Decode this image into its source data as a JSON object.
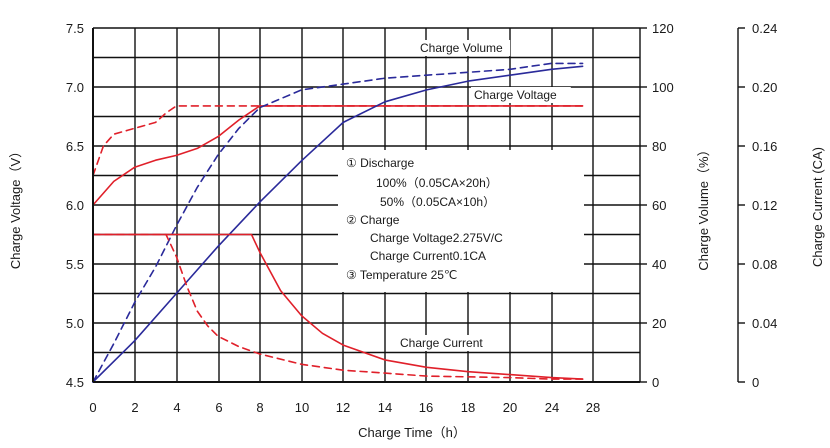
{
  "chart_data": {
    "type": "line",
    "xlabel": "Charge Time（h）",
    "ylabel_left": "Charge Voltage（V）",
    "ylabel_right1": "Charge Volume（%）",
    "ylabel_right2": "Charge Current (CA)",
    "xlim": [
      0,
      28
    ],
    "ylim_left": [
      4.5,
      7.5
    ],
    "ylim_right1": [
      0,
      120
    ],
    "ylim_right2": [
      0,
      0.24
    ],
    "grid": true,
    "x_ticks": [
      "0",
      "2",
      "4",
      "6",
      "8",
      "10",
      "12",
      "14",
      "16",
      "18",
      "20",
      "24",
      "28"
    ],
    "y_ticks_left": [
      "7.5",
      "7.0",
      "6.5",
      "6.0",
      "5.5",
      "5.0",
      "4.5"
    ],
    "y_ticks_right1": [
      "120",
      "100",
      "80",
      "60",
      "40",
      "20",
      "0"
    ],
    "y_ticks_right2": [
      "0.24",
      "0.20",
      "0.16",
      "0.12",
      "0.08",
      "0.04",
      "0"
    ],
    "curve_labels": [
      "Charge Volume",
      "Charge Voltage",
      "Charge Current"
    ],
    "legend_lines": [
      "① Discharge",
      "100%（0.05CA×20h）",
      "50%（0.05CA×10h）",
      "② Charge",
      "Charge Voltage2.275V/C",
      "Charge Current0.1CA",
      "③ Temperature 25℃"
    ],
    "colors": {
      "voltage": "#e0202a",
      "volume": "#2a2a9a",
      "current": "#e0202a",
      "grid": "#111111"
    },
    "series": [
      {
        "kind": "voltage",
        "style": "solid",
        "axis": "left",
        "x": [
          0,
          1,
          2,
          3,
          4,
          5,
          6,
          7,
          8,
          10,
          12,
          16,
          20,
          24,
          27
        ],
        "y": [
          6.0,
          6.2,
          6.32,
          6.38,
          6.42,
          6.48,
          6.58,
          6.72,
          6.84,
          6.84,
          6.84,
          6.84,
          6.84,
          6.84,
          6.84
        ]
      },
      {
        "kind": "voltage",
        "style": "dashed",
        "axis": "left",
        "x": [
          0,
          0.5,
          1,
          2,
          3,
          3.5,
          4,
          6,
          10,
          20,
          27
        ],
        "y": [
          6.25,
          6.5,
          6.6,
          6.65,
          6.7,
          6.78,
          6.84,
          6.84,
          6.84,
          6.84,
          6.84
        ]
      },
      {
        "kind": "volume",
        "style": "solid",
        "axis": "right1",
        "x": [
          0,
          2,
          4,
          6,
          8,
          10,
          12,
          14,
          16,
          18,
          20,
          24,
          27
        ],
        "y": [
          0,
          14,
          30,
          46,
          61,
          75,
          88,
          95,
          99,
          102,
          104,
          106,
          107
        ]
      },
      {
        "kind": "volume",
        "style": "dashed",
        "axis": "right1",
        "x": [
          0,
          1,
          2,
          3,
          4,
          5,
          6,
          7,
          8,
          10,
          12,
          14,
          16,
          18,
          20,
          22,
          24,
          27
        ],
        "y": [
          0,
          13,
          27,
          39,
          53,
          66,
          77,
          86,
          93,
          99,
          101,
          103,
          104,
          105,
          106,
          107,
          108,
          108
        ]
      },
      {
        "kind": "current",
        "style": "solid",
        "axis": "right2",
        "x": [
          0,
          7.6,
          8,
          9,
          10,
          11,
          12,
          14,
          16,
          18,
          20,
          24,
          27
        ],
        "y": [
          0.1,
          0.1,
          0.088,
          0.062,
          0.045,
          0.033,
          0.025,
          0.015,
          0.01,
          0.007,
          0.005,
          0.003,
          0.002
        ]
      },
      {
        "kind": "current",
        "style": "dashed",
        "axis": "right2",
        "x": [
          0,
          3.5,
          4,
          4.5,
          5,
          5.5,
          6,
          7,
          8,
          10,
          12,
          14,
          16,
          20,
          24,
          27
        ],
        "y": [
          0.1,
          0.1,
          0.085,
          0.065,
          0.048,
          0.038,
          0.031,
          0.024,
          0.019,
          0.012,
          0.008,
          0.006,
          0.004,
          0.003,
          0.002,
          0.002
        ]
      }
    ]
  }
}
